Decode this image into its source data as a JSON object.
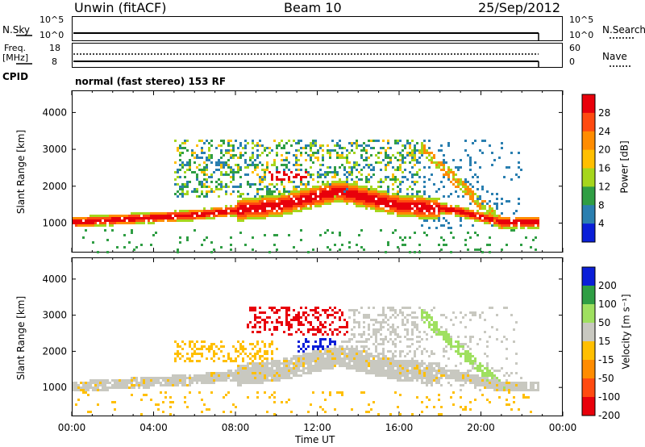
{
  "header": {
    "station": "Unwin (fitACF)",
    "beam": "Beam 10",
    "date": "25/Sep/2012"
  },
  "panels": {
    "nsky": {
      "label": "N.Sky",
      "tick_hi": "10^5",
      "tick_lo": "10^0",
      "right_label": "N.Search",
      "right_tick_hi": "10^5",
      "right_tick_lo": "10^0"
    },
    "freq": {
      "label_line1": "Freq.",
      "label_line2": "[MHz]",
      "tick_hi": "18",
      "tick_lo": "8",
      "right_label": "Nave",
      "right_tick_hi": "60",
      "right_tick_lo": "0"
    },
    "cpid": {
      "label": "CPID",
      "text": "normal (fast stereo) 153 RF"
    }
  },
  "chart_data": [
    {
      "type": "heatmap",
      "title": "",
      "ylabel": "Slant Range [km]",
      "xlabel": "",
      "ylim": [
        200,
        4600
      ],
      "yticks": [
        1000,
        2000,
        3000,
        4000
      ],
      "xlim": [
        0,
        24
      ],
      "colorbar": {
        "label": "Power [dB]",
        "ticks": [
          "28",
          "24",
          "20",
          "16",
          "12",
          "8",
          "4"
        ],
        "colors": [
          "#e8000b",
          "#ff4a10",
          "#ff8c00",
          "#ffbf00",
          "#a6d61c",
          "#2f9e44",
          "#2a7fb0",
          "#0a1fd8"
        ]
      },
      "features": [
        {
          "name": "main band",
          "x": [
            0,
            6,
            10,
            13,
            16,
            18.5,
            21,
            23
          ],
          "y": [
            1050,
            1250,
            1500,
            1900,
            1500,
            1400,
            1050,
            1050
          ]
        },
        {
          "name": "upper patch",
          "x": [
            9.5,
            11.5
          ],
          "y": [
            2300,
            2300
          ]
        },
        {
          "name": "ionospheric streak",
          "x": [
            18.5,
            21
          ],
          "y": [
            2300,
            1000
          ]
        }
      ]
    },
    {
      "type": "heatmap",
      "title": "",
      "ylabel": "Slant Range [km]",
      "xlabel": "Time UT",
      "ylim": [
        200,
        4600
      ],
      "yticks": [
        1000,
        2000,
        3000,
        4000
      ],
      "xlim": [
        0,
        24
      ],
      "xticks": [
        "00:00",
        "04:00",
        "08:00",
        "12:00",
        "16:00",
        "20:00",
        "00:00"
      ],
      "colorbar": {
        "label": "Velocity [m s⁻¹]",
        "ticks": [
          "200",
          "100",
          "50",
          "15",
          "-15",
          "-50",
          "-100",
          "-200"
        ],
        "colors": [
          "#0b1fd8",
          "#2f9e44",
          "#9fe060",
          "#c8c8c0",
          "#ffbf00",
          "#ff8c00",
          "#ff4a10",
          "#e8000b"
        ]
      },
      "features": [
        {
          "name": "ground scatter",
          "x": [
            0,
            23
          ],
          "y": [
            1100,
            1500
          ]
        },
        {
          "name": "red streak",
          "x": [
            8.5,
            13.5
          ],
          "y": [
            2500,
            3100
          ]
        },
        {
          "name": "blue streak",
          "x": [
            11,
            13
          ],
          "y": [
            2200,
            2200
          ]
        }
      ]
    }
  ]
}
